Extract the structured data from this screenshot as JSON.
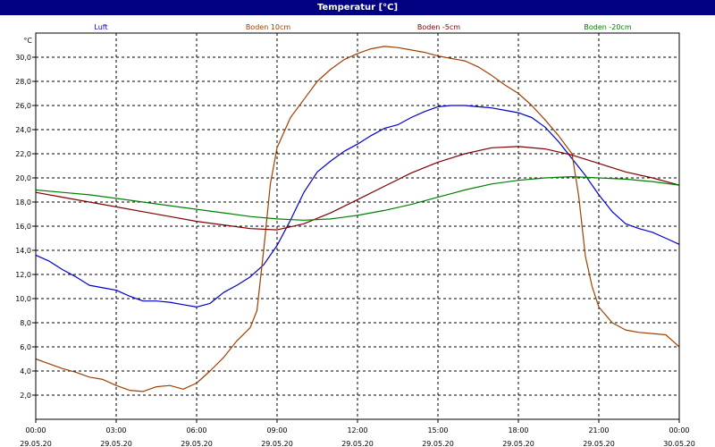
{
  "chart_data": {
    "type": "line",
    "title": "Temperatur [°C]",
    "ylabel": "°C",
    "ylim": [
      0,
      32
    ],
    "yticks": [
      2,
      4,
      6,
      8,
      10,
      12,
      14,
      16,
      18,
      20,
      22,
      24,
      26,
      28,
      30
    ],
    "ytick_labels": [
      "2,0",
      "4,0",
      "6,0",
      "8,0",
      "10,0",
      "12,0",
      "14,0",
      "16,0",
      "18,0",
      "20,0",
      "22,0",
      "24,0",
      "26,0",
      "28,0",
      "30,0"
    ],
    "xlim": [
      0,
      24
    ],
    "xticks": [
      {
        "t": 0,
        "time": "00:00",
        "date": "29.05.20"
      },
      {
        "t": 3,
        "time": "03:00",
        "date": "29.05.20"
      },
      {
        "t": 6,
        "time": "06:00",
        "date": "29.05.20"
      },
      {
        "t": 9,
        "time": "09:00",
        "date": "29.05.20"
      },
      {
        "t": 12,
        "time": "12:00",
        "date": "29.05.20"
      },
      {
        "t": 15,
        "time": "15:00",
        "date": "29.05.20"
      },
      {
        "t": 18,
        "time": "18:00",
        "date": "29.05.20"
      },
      {
        "t": 21,
        "time": "21:00",
        "date": "29.05.20"
      },
      {
        "t": 24,
        "time": "00:00",
        "date": "30.05.20"
      }
    ],
    "grid": true,
    "legend_position": "top",
    "series": [
      {
        "name": "Luft",
        "color": "#0000cc",
        "x": [
          0,
          0.5,
          1,
          1.5,
          2,
          2.5,
          3,
          3.5,
          4,
          4.5,
          5,
          5.5,
          6,
          6.5,
          7,
          7.5,
          8,
          8.5,
          9,
          9.5,
          10,
          10.5,
          11,
          11.5,
          12,
          12.5,
          13,
          13.5,
          14,
          14.5,
          15,
          15.5,
          16,
          16.5,
          17,
          17.5,
          18,
          18.5,
          19,
          19.5,
          20,
          20.5,
          21,
          21.5,
          22,
          22.5,
          23,
          23.5,
          24
        ],
        "y": [
          13.6,
          13.1,
          12.4,
          11.8,
          11.1,
          10.9,
          10.7,
          10.2,
          9.8,
          9.8,
          9.7,
          9.5,
          9.3,
          9.6,
          10.5,
          11.1,
          11.8,
          12.8,
          14.4,
          16.5,
          18.8,
          20.5,
          21.4,
          22.2,
          22.8,
          23.5,
          24.1,
          24.4,
          25.0,
          25.5,
          25.9,
          26.0,
          26.0,
          25.9,
          25.8,
          25.6,
          25.4,
          25.0,
          24.2,
          23.0,
          21.6,
          20.2,
          18.6,
          17.2,
          16.2,
          15.8,
          15.5,
          15.0,
          14.5
        ]
      },
      {
        "name": "Boden 10cm",
        "color": "#a04000",
        "x": [
          0,
          0.5,
          1,
          1.5,
          2,
          2.5,
          3,
          3.5,
          4,
          4.5,
          5,
          5.5,
          6,
          6.5,
          7,
          7.5,
          8,
          8.25,
          8.5,
          8.75,
          9,
          9.5,
          10,
          10.5,
          11,
          11.5,
          12,
          12.5,
          13,
          13.5,
          14,
          14.5,
          15,
          15.5,
          16,
          16.5,
          17,
          17.5,
          18,
          18.5,
          19,
          19.5,
          20,
          20.25,
          20.5,
          20.75,
          21,
          21.5,
          22,
          22.5,
          23,
          23.5,
          24
        ],
        "y": [
          5.0,
          4.6,
          4.2,
          3.9,
          3.5,
          3.3,
          2.8,
          2.4,
          2.3,
          2.7,
          2.8,
          2.5,
          3.0,
          4.0,
          5.1,
          6.5,
          7.6,
          9.0,
          14.0,
          19.5,
          22.5,
          25.0,
          26.5,
          28.0,
          29.0,
          29.8,
          30.3,
          30.7,
          30.9,
          30.8,
          30.6,
          30.4,
          30.1,
          29.9,
          29.7,
          29.2,
          28.5,
          27.7,
          27.0,
          26.0,
          24.8,
          23.5,
          22.0,
          18.5,
          13.5,
          11.0,
          9.3,
          8.0,
          7.4,
          7.2,
          7.1,
          7.0,
          6.0
        ]
      },
      {
        "name": "Boden -5cm",
        "color": "#800000",
        "x": [
          0,
          1,
          2,
          3,
          4,
          5,
          6,
          7,
          8,
          9,
          10,
          11,
          12,
          13,
          14,
          15,
          16,
          17,
          18,
          19,
          20,
          21,
          22,
          23,
          24
        ],
        "y": [
          18.8,
          18.4,
          18.0,
          17.6,
          17.2,
          16.8,
          16.4,
          16.1,
          15.8,
          15.7,
          16.2,
          17.1,
          18.2,
          19.3,
          20.4,
          21.3,
          22.0,
          22.5,
          22.6,
          22.4,
          21.9,
          21.2,
          20.5,
          20.0,
          19.4
        ]
      },
      {
        "name": "Boden -20cm",
        "color": "#008000",
        "x": [
          0,
          1,
          2,
          3,
          4,
          5,
          6,
          7,
          8,
          9,
          10,
          11,
          12,
          13,
          14,
          15,
          16,
          17,
          18,
          19,
          20,
          21,
          22,
          23,
          24
        ],
        "y": [
          19.0,
          18.8,
          18.6,
          18.3,
          18.0,
          17.7,
          17.4,
          17.1,
          16.8,
          16.6,
          16.5,
          16.6,
          16.9,
          17.3,
          17.8,
          18.4,
          19.0,
          19.5,
          19.8,
          20.0,
          20.1,
          20.0,
          19.9,
          19.7,
          19.4
        ]
      }
    ]
  }
}
